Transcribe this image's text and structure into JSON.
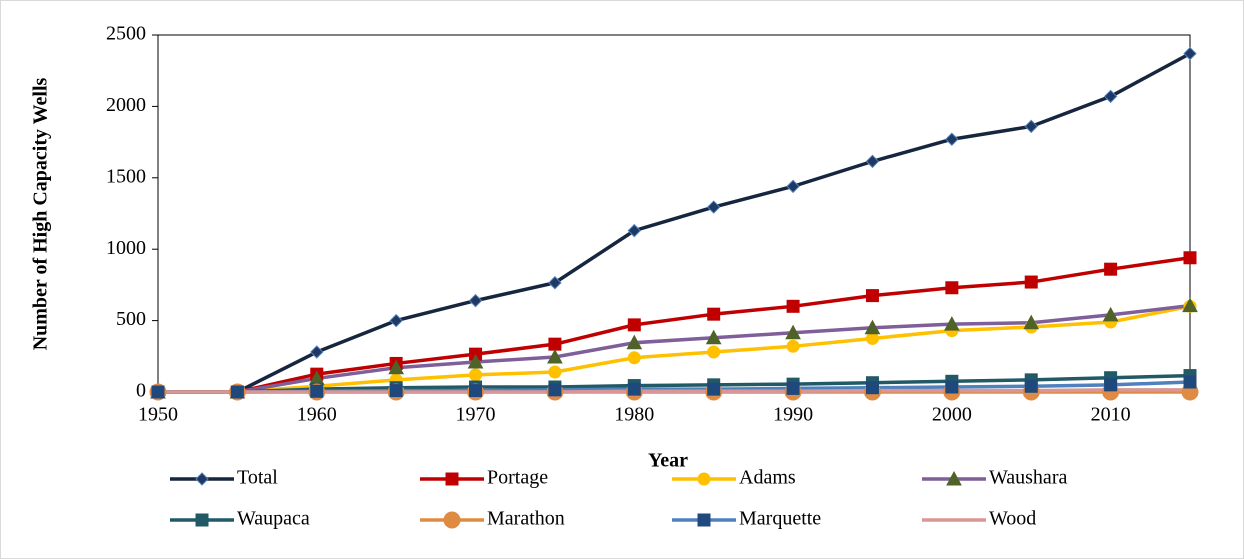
{
  "chart_data": {
    "type": "line",
    "x_label": "Year",
    "y_label": "Number of High Capacity Wells",
    "x": [
      1950,
      1955,
      1960,
      1965,
      1970,
      1975,
      1980,
      1985,
      1990,
      1995,
      2000,
      2005,
      2010,
      2015
    ],
    "xlim": [
      1950,
      2015
    ],
    "xticks": [
      1950,
      1960,
      1970,
      1980,
      1990,
      2000,
      2010
    ],
    "ylim": [
      0,
      2500
    ],
    "yticks": [
      0,
      500,
      1000,
      1500,
      2000,
      2500
    ],
    "series": [
      {
        "name": "Total",
        "color": "#17263f",
        "marker": "diamond",
        "marker_color": "#1f3864",
        "values": [
          0,
          0,
          280,
          500,
          640,
          765,
          1130,
          1295,
          1440,
          1615,
          1770,
          1860,
          2070,
          2370
        ]
      },
      {
        "name": "Portage",
        "color": "#c00000",
        "marker": "square",
        "marker_color": "#c00000",
        "values": [
          0,
          0,
          125,
          200,
          265,
          335,
          470,
          545,
          600,
          675,
          730,
          770,
          860,
          940
        ]
      },
      {
        "name": "Adams",
        "color": "#ffc000",
        "marker": "circle",
        "marker_color": "#ffc000",
        "values": [
          0,
          0,
          40,
          85,
          120,
          140,
          240,
          280,
          320,
          375,
          430,
          455,
          490,
          600
        ]
      },
      {
        "name": "Waushara",
        "color": "#7f5f9a",
        "marker": "triangle",
        "marker_color": "#4f6228",
        "values": [
          0,
          0,
          95,
          170,
          210,
          245,
          345,
          380,
          415,
          450,
          475,
          485,
          540,
          605
        ]
      },
      {
        "name": "Waupaca",
        "color": "#215967",
        "marker": "square",
        "marker_color": "#215967",
        "values": [
          0,
          0,
          20,
          30,
          35,
          35,
          45,
          50,
          55,
          65,
          75,
          85,
          100,
          115
        ]
      },
      {
        "name": "Marathon",
        "color": "#e08b44",
        "marker": "bigcircle",
        "marker_color": "#e08b44",
        "values": [
          0,
          0,
          0,
          0,
          0,
          0,
          0,
          0,
          0,
          0,
          0,
          0,
          0,
          0
        ]
      },
      {
        "name": "Marquette",
        "color": "#4f81bd",
        "marker": "square",
        "marker_color": "#1f497d",
        "values": [
          0,
          0,
          5,
          10,
          10,
          15,
          20,
          20,
          25,
          30,
          35,
          40,
          50,
          70
        ]
      },
      {
        "name": "Wood",
        "color": "#d99694",
        "marker": "none",
        "marker_color": "#d99694",
        "values": [
          0,
          0,
          0,
          0,
          0,
          0,
          5,
          5,
          5,
          10,
          10,
          10,
          15,
          15
        ]
      }
    ]
  }
}
